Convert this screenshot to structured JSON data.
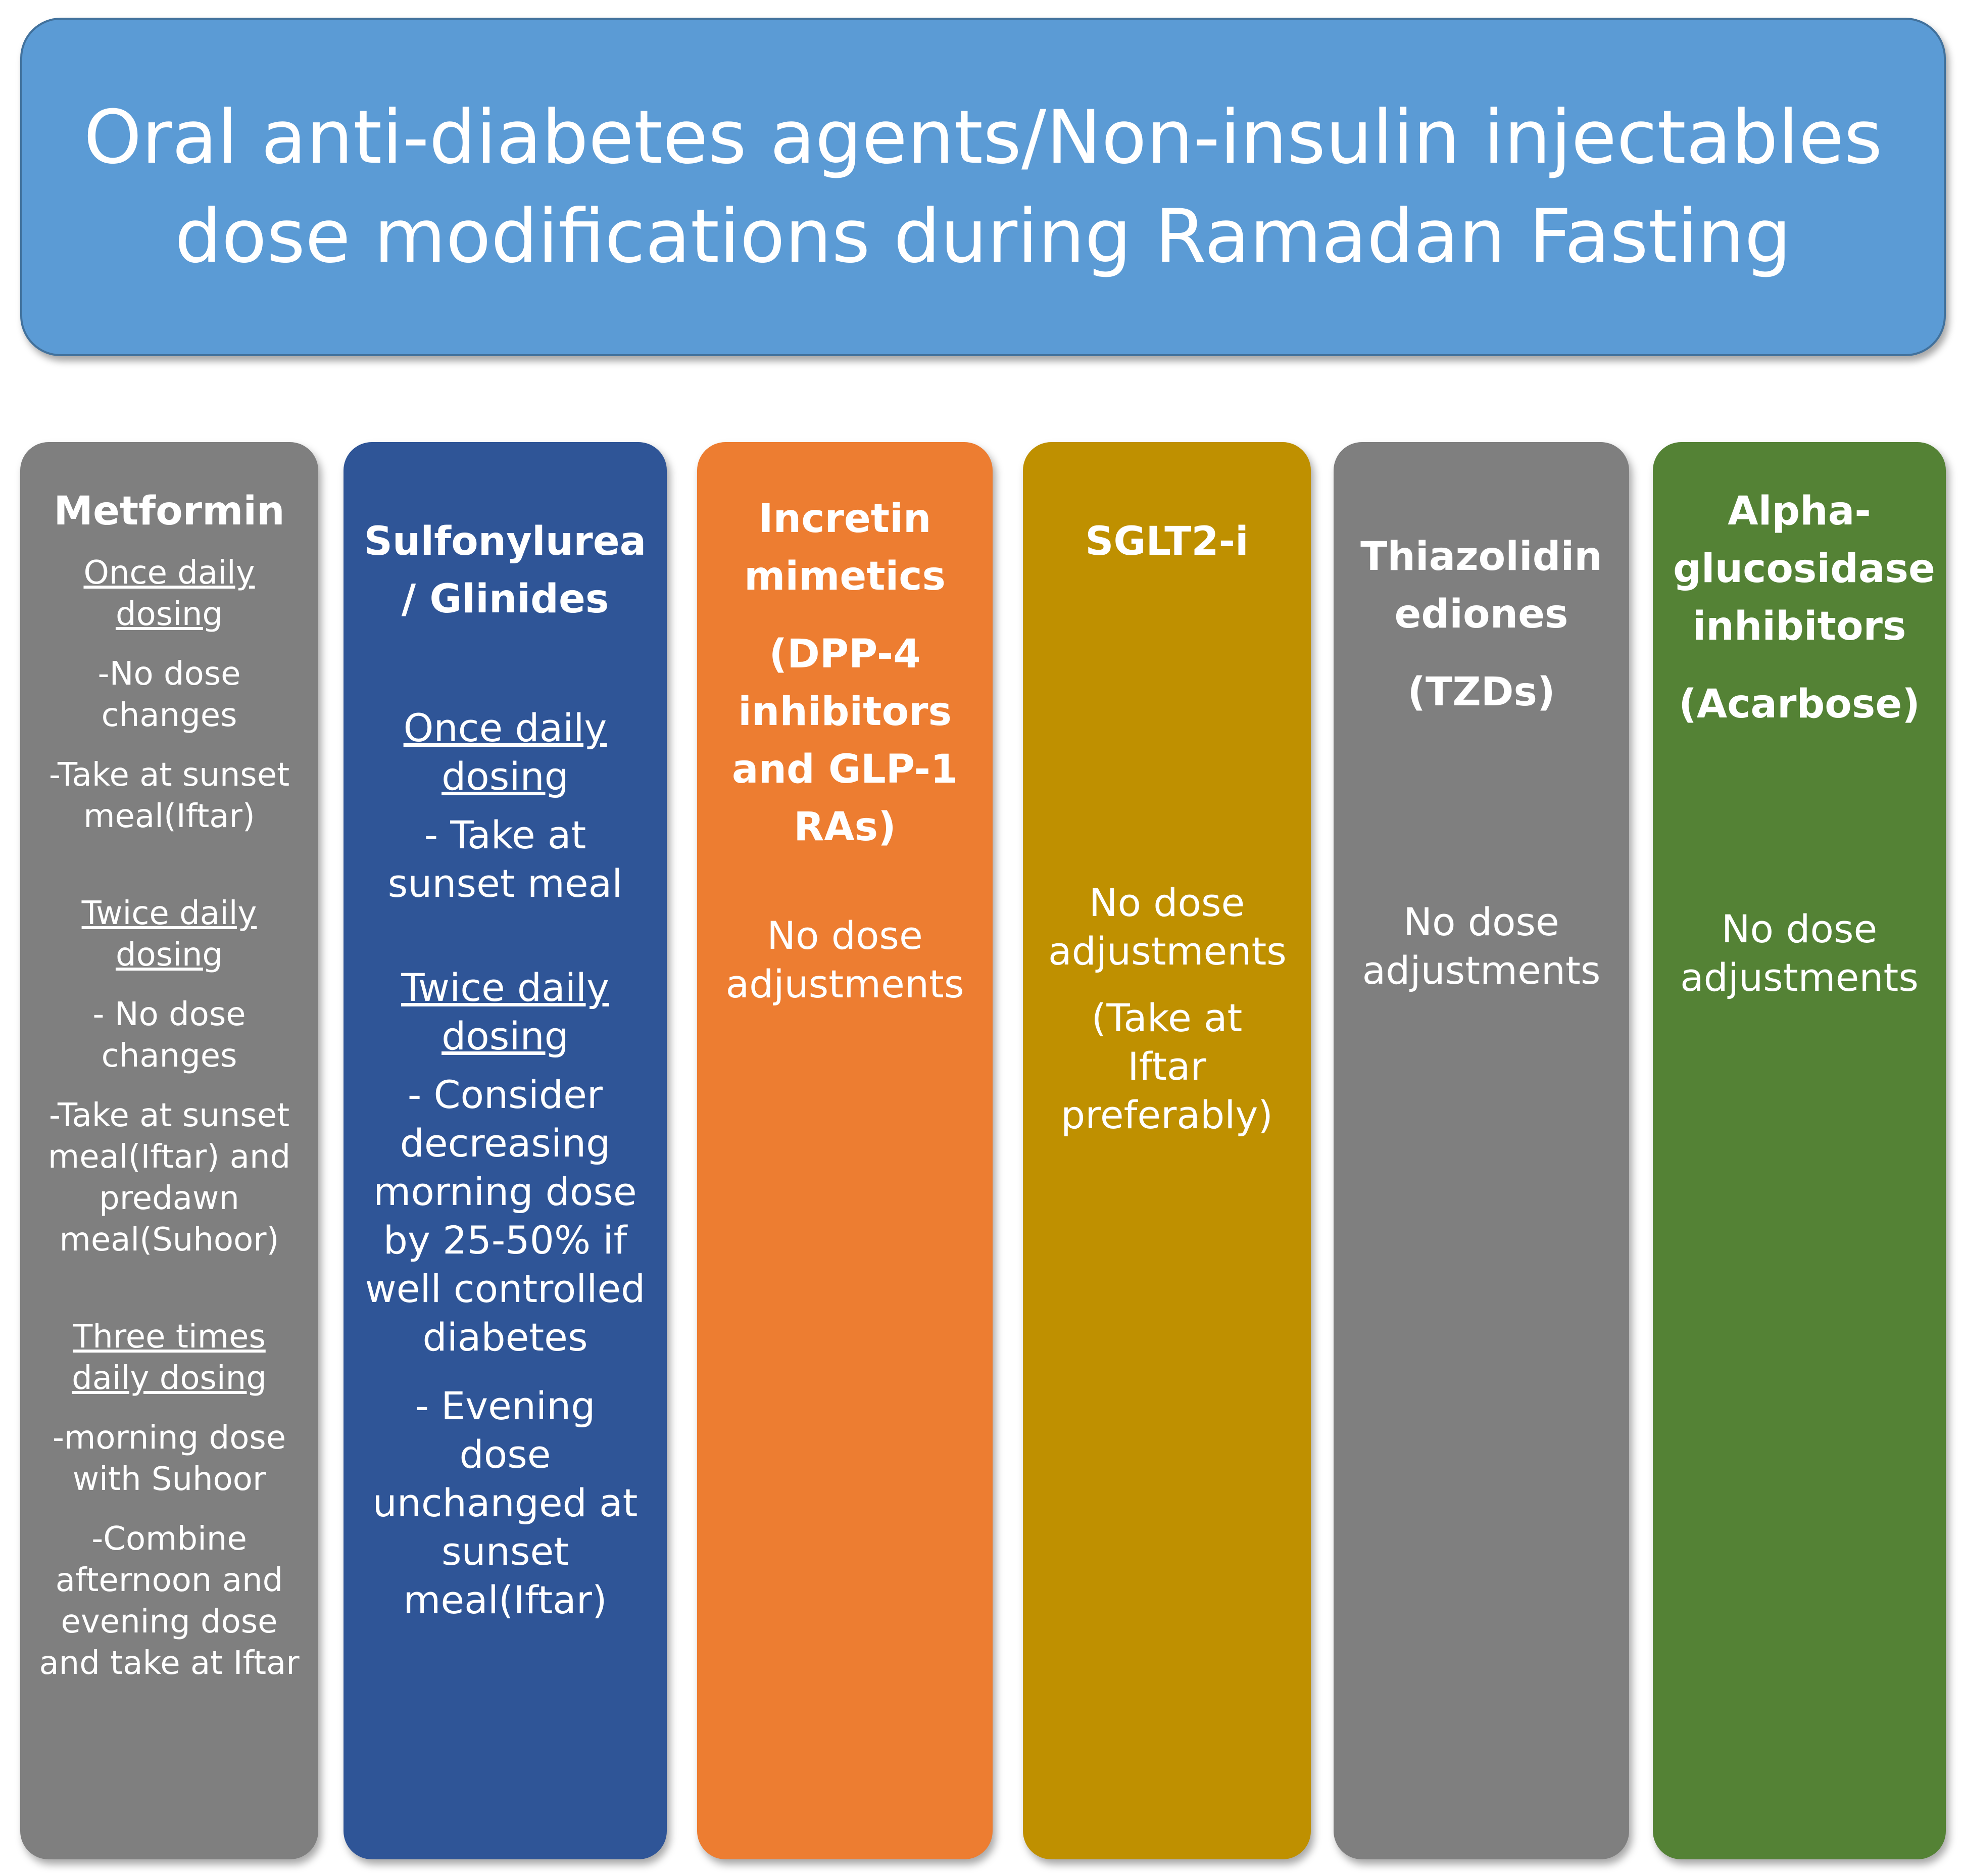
{
  "title": {
    "line1": "Oral anti-diabetes agents/Non-insulin injectables",
    "line2": "dose modifications during Ramadan Fasting"
  },
  "colors": {
    "title_bg": "#5b9bd5",
    "metformin": "#7f7f7f",
    "sulfonylurea": "#2f5597",
    "incretin": "#ed7d31",
    "sglt2": "#bf9000",
    "tzd": "#7f7f7f",
    "acarbose": "#548235"
  },
  "columns": {
    "metformin": {
      "heading": "Metformin",
      "once_label": "Once daily dosing",
      "once_1": "-No dose changes",
      "once_2": "-Take at sunset meal(Iftar)",
      "twice_label": "Twice daily dosing",
      "twice_1": "- No dose changes",
      "twice_2": "-Take at sunset meal(Iftar) and predawn meal(Suhoor)",
      "three_label": "Three times daily dosing",
      "three_1": "-morning dose with Suhoor",
      "three_2": "-Combine afternoon and evening dose and take at Iftar"
    },
    "sulfonylurea": {
      "heading": "Sulfonylurea / Glinides",
      "once_label": "Once daily dosing",
      "once_1": "- Take at sunset meal",
      "twice_label": "Twice daily dosing",
      "twice_1": "- Consider decreasing morning dose by 25-50% if well controlled diabetes",
      "twice_2": "- Evening dose unchanged at sunset meal(Iftar)"
    },
    "incretin": {
      "heading": "Incretin mimetics",
      "subheading": "(DPP-4 inhibitors and GLP-1 RAs)",
      "note": "No dose adjustments"
    },
    "sglt2": {
      "heading": "SGLT2-i",
      "note": "No dose adjustments",
      "note2": "(Take at Iftar preferably)"
    },
    "tzd": {
      "heading": "Thiazolidin ediones",
      "subheading": "(TZDs)",
      "note": "No dose adjustments"
    },
    "acarbose": {
      "heading": "Alpha-glucosidase inhibitors",
      "subheading": "(Acarbose)",
      "note": "No dose adjustments"
    }
  }
}
